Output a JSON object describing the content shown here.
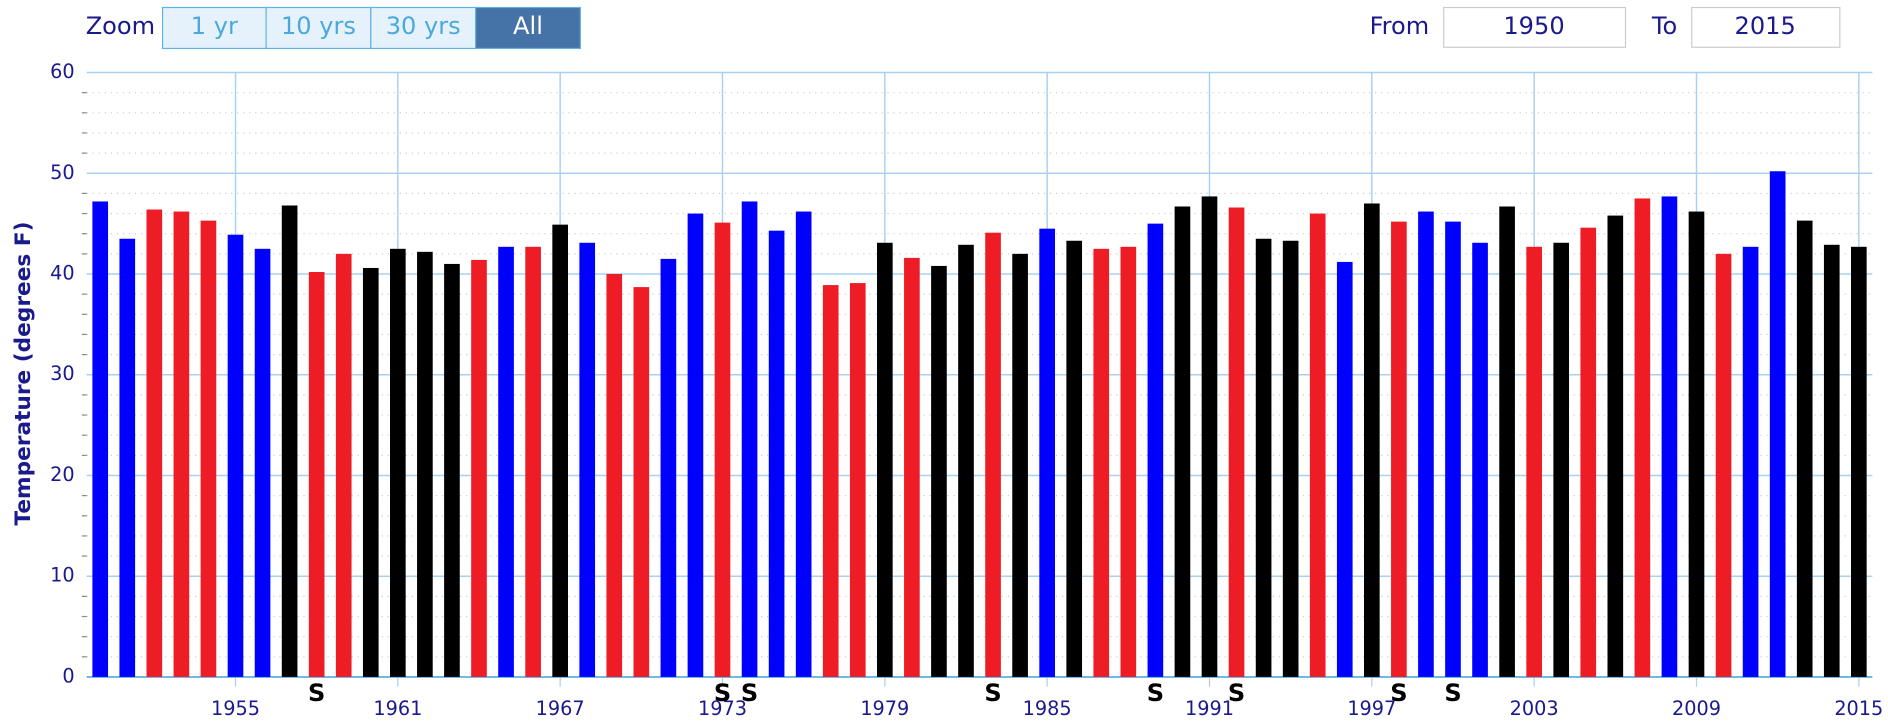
{
  "range_selector": {
    "zoom_label": "Zoom",
    "buttons": [
      "1 yr",
      "10 yrs",
      "30 yrs",
      "All"
    ],
    "selected": "All",
    "from_label": "From",
    "from": "1950",
    "to_label": "To",
    "to": "2015"
  },
  "chart_data": {
    "type": "bar",
    "y_label": "Temperature (degrees F)",
    "x": [
      1950,
      1951,
      1952,
      1953,
      1954,
      1955,
      1956,
      1957,
      1958,
      1959,
      1960,
      1961,
      1962,
      1963,
      1964,
      1965,
      1966,
      1967,
      1968,
      1969,
      1970,
      1971,
      1972,
      1973,
      1974,
      1975,
      1976,
      1977,
      1978,
      1979,
      1980,
      1981,
      1982,
      1983,
      1984,
      1985,
      1986,
      1987,
      1988,
      1989,
      1990,
      1991,
      1992,
      1993,
      1994,
      1995,
      1996,
      1997,
      1998,
      1999,
      2000,
      2001,
      2002,
      2003,
      2004,
      2005,
      2006,
      2007,
      2008,
      2009,
      2010,
      2011,
      2012,
      2013,
      2014,
      2015
    ],
    "values": [
      47.2,
      43.5,
      46.4,
      46.2,
      45.3,
      43.9,
      42.5,
      46.8,
      40.2,
      42.0,
      40.6,
      42.5,
      42.2,
      41.0,
      41.4,
      42.7,
      42.7,
      44.9,
      43.1,
      40.0,
      38.7,
      41.5,
      46.0,
      45.1,
      47.2,
      44.3,
      46.2,
      38.9,
      39.1,
      43.1,
      41.6,
      40.8,
      42.9,
      44.1,
      42.0,
      44.5,
      43.3,
      42.5,
      42.7,
      45.0,
      46.7,
      47.7,
      46.6,
      43.5,
      43.3,
      46.0,
      41.2,
      47.0,
      45.2,
      46.2,
      45.2,
      43.1,
      46.7,
      42.7,
      43.1,
      44.6,
      45.8,
      47.5,
      47.7,
      46.2,
      42.0,
      42.7,
      50.2,
      45.3,
      42.9,
      42.7
    ],
    "colors": [
      "#0000ff",
      "#0000ff",
      "#ee1c25",
      "#ee1c25",
      "#ee1c25",
      "#0000ff",
      "#0000ff",
      "#000000",
      "#ee1c25",
      "#ee1c25",
      "#000000",
      "#000000",
      "#000000",
      "#000000",
      "#ee1c25",
      "#0000ff",
      "#ee1c25",
      "#000000",
      "#0000ff",
      "#ee1c25",
      "#ee1c25",
      "#0000ff",
      "#0000ff",
      "#ee1c25",
      "#0000ff",
      "#0000ff",
      "#0000ff",
      "#ee1c25",
      "#ee1c25",
      "#000000",
      "#ee1c25",
      "#000000",
      "#000000",
      "#ee1c25",
      "#000000",
      "#0000ff",
      "#000000",
      "#ee1c25",
      "#ee1c25",
      "#0000ff",
      "#000000",
      "#000000",
      "#ee1c25",
      "#000000",
      "#000000",
      "#ee1c25",
      "#0000ff",
      "#000000",
      "#ee1c25",
      "#0000ff",
      "#0000ff",
      "#0000ff",
      "#000000",
      "#ee1c25",
      "#000000",
      "#ee1c25",
      "#000000",
      "#ee1c25",
      "#0000ff",
      "#000000",
      "#ee1c25",
      "#0000ff",
      "#0000ff",
      "#000000",
      "#000000",
      "#000000"
    ],
    "annotations": [
      {
        "x": 1958,
        "text": "S"
      },
      {
        "x": 1973,
        "text": "S"
      },
      {
        "x": 1974,
        "text": "S"
      },
      {
        "x": 1983,
        "text": "S"
      },
      {
        "x": 1989,
        "text": "S"
      },
      {
        "x": 1992,
        "text": "S"
      },
      {
        "x": 1998,
        "text": "S"
      },
      {
        "x": 2000,
        "text": "S"
      }
    ],
    "xlim": [
      1949.5,
      2015.5
    ],
    "xticks": [
      1955,
      1961,
      1967,
      1973,
      1979,
      1985,
      1991,
      1997,
      2003,
      2009,
      2015
    ],
    "ylim": [
      0,
      60
    ],
    "yticks": [
      0,
      10,
      20,
      30,
      40,
      50,
      60
    ],
    "minor_tick_interval": 2,
    "grid": true
  }
}
